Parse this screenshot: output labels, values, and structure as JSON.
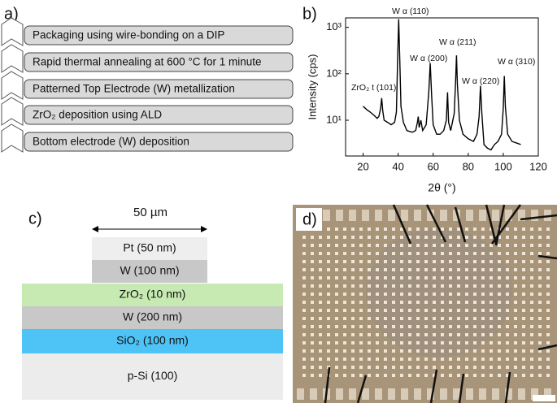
{
  "panel_labels": [
    "a)",
    "b)",
    "c)",
    "d)"
  ],
  "process_steps": [
    "Packaging using wire-bonding on a DIP",
    "Rapid thermal annealing at 600 °C for 1 minute",
    "Patterned Top Electrode (W) metallization",
    "ZrO₂ deposition using ALD",
    "Bottom electrode (W) deposition"
  ],
  "chart_data": {
    "type": "line",
    "x_label": "2θ (°)",
    "y_label": "Intensity (cps)",
    "log_y": true,
    "color": "#000000",
    "x": [
      20,
      22,
      24,
      26,
      28,
      29,
      30,
      30.6,
      31.2,
      32,
      34,
      36,
      38,
      39,
      39.7,
      40.3,
      40.9,
      41.6,
      43,
      45,
      48,
      50,
      51,
      51.5,
      52,
      53,
      54,
      56,
      57.5,
      58.3,
      59.1,
      60,
      62,
      64,
      66,
      67.5,
      68.2,
      68.8,
      70,
      72,
      72.8,
      73.3,
      73.8,
      75,
      77,
      80,
      83,
      85,
      86.2,
      87,
      87.8,
      89,
      91,
      93,
      95,
      97,
      99,
      100,
      100.6,
      101.2,
      102.5,
      105,
      108,
      110
    ],
    "values": [
      20,
      17,
      15,
      13,
      11,
      12,
      18,
      30,
      16,
      10,
      9,
      8,
      9,
      15,
      200,
      1500,
      220,
      20,
      9,
      6,
      5.5,
      6,
      9,
      12,
      7,
      10,
      6,
      8,
      40,
      170,
      35,
      8,
      5,
      5,
      6,
      10,
      40,
      9,
      6,
      14,
      70,
      250,
      60,
      10,
      5,
      4,
      3.5,
      5,
      12,
      55,
      14,
      3,
      2.5,
      2.3,
      3,
      3.5,
      5,
      18,
      90,
      20,
      5,
      3.5,
      3.2,
      3
    ],
    "xlim": [
      10,
      120
    ],
    "xticks": [
      20,
      40,
      60,
      80,
      100,
      120
    ],
    "ylim": [
      1.7,
      1600
    ],
    "yticks": [
      {
        "value": 10,
        "label": "10¹"
      },
      {
        "value": 100,
        "label": "10²"
      },
      {
        "value": 1000,
        "label": "10³"
      }
    ],
    "annotations": [
      "ZrO₂ t (101)",
      "W α (110)",
      "W α (200)",
      "W α (211)",
      "W α (220)",
      "W α (310)"
    ]
  },
  "stack": {
    "scale_label": "50 µm",
    "layers": [
      {
        "label": "Pt (50 nm)",
        "color": "#eeeeee"
      },
      {
        "label": "W (100 nm)",
        "color": "#c8c8c8"
      },
      {
        "label": "ZrO₂ (10 nm)",
        "color": "#c6eab2"
      },
      {
        "label": "W (200 nm)",
        "color": "#c8c8c8"
      },
      {
        "label": "SiO₂ (100 nm)",
        "color": "#4ec3f5"
      },
      {
        "label": "p-Si (100)",
        "color": "#ececec"
      }
    ]
  }
}
